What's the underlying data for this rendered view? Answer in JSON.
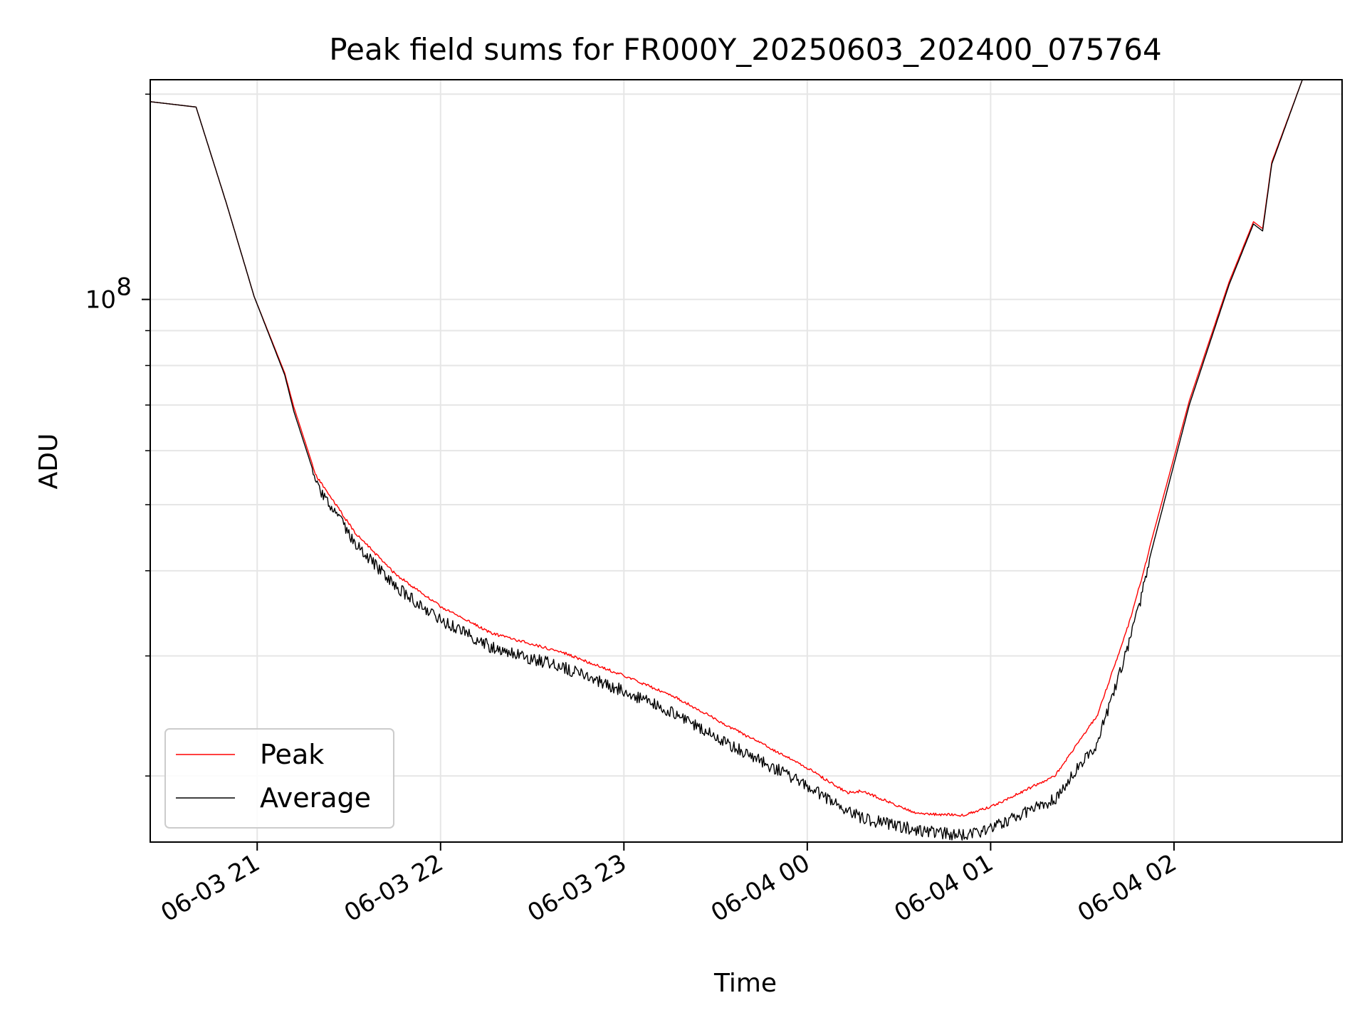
{
  "chart_data": {
    "type": "line",
    "title": "Peak field sums for FR000Y_20250603_202400_075764",
    "xlabel": "Time",
    "ylabel": "ADU",
    "y_scale": "log",
    "ylim": [
      16000000,
      210000000
    ],
    "xlim": [
      "2025-06-03 20:25",
      "2025-06-04 02:55"
    ],
    "x_ticks": [
      "06-03 21",
      "06-03 22",
      "06-03 23",
      "06-04 00",
      "06-04 01",
      "06-04 02"
    ],
    "y_major_tick_label": {
      "base": "10",
      "exponent": "8"
    },
    "grid": true,
    "legend_position": "lower-left",
    "colors": {
      "Peak": "#ff0000",
      "Average": "#000000"
    },
    "series": [
      {
        "name": "Peak",
        "x": [
          "2025-06-03 20:25",
          "2025-06-03 20:40",
          "2025-06-03 20:40",
          "2025-06-03 20:50",
          "2025-06-03 20:59",
          "2025-06-03 21:09",
          "2025-06-03 21:12",
          "2025-06-03 21:19",
          "2025-06-03 21:32",
          "2025-06-03 21:45",
          "2025-06-03 22:00",
          "2025-06-03 22:17",
          "2025-06-03 22:40",
          "2025-06-03 23:00",
          "2025-06-03 23:17",
          "2025-06-03 23:37",
          "2025-06-03 23:58",
          "2025-06-04 00:13",
          "2025-06-04 00:18",
          "2025-06-04 00:36",
          "2025-06-04 00:51",
          "2025-06-04 01:00",
          "2025-06-04 01:21",
          "2025-06-04 01:35",
          "2025-06-04 01:46",
          "2025-06-04 02:05",
          "2025-06-04 02:18",
          "2025-06-04 02:26",
          "2025-06-04 02:29",
          "2025-06-04 02:32",
          "2025-06-04 02:42"
        ],
        "y": [
          195000000,
          191500000,
          191500000,
          138000000,
          101000000,
          78000000,
          69500000,
          55600000,
          45700000,
          39800000,
          35600000,
          32500000,
          30500000,
          28200000,
          26200000,
          23400000,
          20900000,
          19000000,
          19100000,
          17700000,
          17600000,
          18100000,
          20100000,
          24700000,
          34400000,
          71000000,
          106000000,
          130000000,
          127000000,
          159000000,
          210000000
        ]
      },
      {
        "name": "Average",
        "x": [
          "2025-06-03 20:25",
          "2025-06-03 20:40",
          "2025-06-03 20:40",
          "2025-06-03 20:50",
          "2025-06-03 20:59",
          "2025-06-03 21:09",
          "2025-06-03 21:12",
          "2025-06-03 21:19",
          "2025-06-03 21:32",
          "2025-06-03 21:45",
          "2025-06-03 22:00",
          "2025-06-03 22:17",
          "2025-06-03 22:40",
          "2025-06-03 23:00",
          "2025-06-03 23:17",
          "2025-06-03 23:37",
          "2025-06-03 23:58",
          "2025-06-04 00:13",
          "2025-06-04 00:18",
          "2025-06-04 00:36",
          "2025-06-04 00:51",
          "2025-06-04 01:00",
          "2025-06-04 01:21",
          "2025-06-04 01:35",
          "2025-06-04 01:46",
          "2025-06-04 02:05",
          "2025-06-04 02:18",
          "2025-06-04 02:26",
          "2025-06-04 02:29",
          "2025-06-04 02:32",
          "2025-06-04 02:42"
        ],
        "y": [
          195000000,
          191500000,
          191500000,
          138000000,
          101000000,
          77500000,
          68500000,
          54800000,
          44800000,
          38800000,
          34600000,
          31500000,
          29500000,
          27200000,
          25200000,
          22400000,
          20000000,
          18200000,
          17700000,
          17000000,
          16700000,
          17100000,
          18900000,
          22900000,
          32800000,
          70000000,
          105000000,
          129000000,
          126000000,
          158000000,
          210000000
        ]
      }
    ]
  }
}
